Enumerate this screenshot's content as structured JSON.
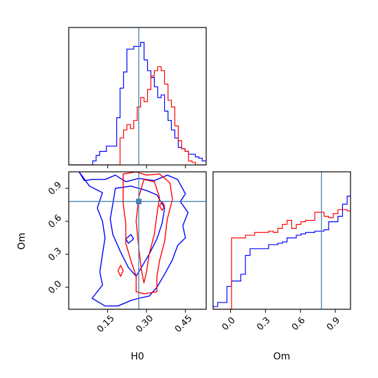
{
  "chart_data": {
    "type": "corner",
    "parameters": [
      "H0",
      "Om"
    ],
    "truth": {
      "H0": 0.27,
      "Om": 0.78
    },
    "colors": {
      "series_a": "#0000ff",
      "series_b": "#ff0000",
      "truth": "#4682b4"
    },
    "panels": [
      {
        "type": "histogram",
        "parameter": "H0",
        "xlim": [
          0.0,
          0.53
        ],
        "bin_width": 0.0132,
        "bin_start": 0.0,
        "series": [
          {
            "color": "#0000ff",
            "counts": [
              0,
              0,
              0,
              0,
              0,
              0,
              0,
              0.03,
              0.07,
              0.1,
              0.1,
              0.14,
              0.14,
              0.14,
              0.35,
              0.57,
              0.69,
              0.86,
              0.86,
              0.88,
              0.88,
              0.91,
              0.78,
              0.7,
              0.65,
              0.58,
              0.5,
              0.52,
              0.4,
              0.33,
              0.26,
              0.2,
              0.13,
              0.12,
              0.1,
              0.08,
              0.08,
              0.06,
              0.05,
              0.03
            ]
          },
          {
            "color": "#ff0000",
            "counts": [
              0,
              0,
              0,
              0,
              0,
              0,
              0,
              0,
              0,
              0,
              0,
              0,
              0,
              0,
              0,
              0.2,
              0.26,
              0.3,
              0.27,
              0.33,
              0.43,
              0.5,
              0.47,
              0.56,
              0.66,
              0.7,
              0.73,
              0.7,
              0.6,
              0.48,
              0.43,
              0.29,
              0.18,
              0.12,
              0.1,
              0.03,
              0.02,
              0,
              0,
              0
            ]
          }
        ]
      },
      {
        "type": "histogram",
        "parameter": "Om",
        "xlim": [
          -0.15,
          1.03
        ],
        "bin_width": 0.0397,
        "bin_start": -0.15,
        "series": [
          {
            "color": "#0000ff",
            "counts": [
              0.02,
              0.05,
              0.05,
              0.17,
              0.21,
              0.21,
              0.26,
              0.4,
              0.45,
              0.45,
              0.45,
              0.45,
              0.48,
              0.48,
              0.49,
              0.5,
              0.53,
              0.53,
              0.55,
              0.56,
              0.57,
              0.57,
              0.58,
              0.58,
              0.59,
              0.65,
              0.65,
              0.69,
              0.78,
              0.84,
              0.84,
              0.81,
              0.78,
              0.74,
              0.58,
              0.5,
              0.45,
              0.43
            ]
          },
          {
            "color": "#ff0000",
            "counts": [
              0,
              0,
              0,
              0,
              0.53,
              0.53,
              0.53,
              0.55,
              0.55,
              0.57,
              0.57,
              0.57,
              0.58,
              0.57,
              0.6,
              0.63,
              0.66,
              0.6,
              0.63,
              0.65,
              0.66,
              0.66,
              0.72,
              0.72,
              0.69,
              0.68,
              0.71,
              0.74,
              0.74,
              0.73,
              0.75,
              0.73,
              0.76,
              0.74,
              0.0,
              0.0,
              0.0,
              0.0
            ]
          }
        ]
      },
      {
        "type": "contour",
        "x": "H0",
        "y": "Om",
        "xlim": [
          0.0,
          0.53
        ],
        "ylim": [
          -0.2,
          1.05
        ],
        "series": [
          {
            "color": "#0000ff",
            "levels": [
              [
                [
                  0.04,
                  1.05
                ],
                [
                  0.06,
                  0.97
                ],
                [
                  0.09,
                  0.98
                ],
                [
                  0.14,
                  0.98
                ],
                [
                  0.18,
                  1.02
                ],
                [
                  0.22,
                  0.96
                ],
                [
                  0.27,
                  0.99
                ],
                [
                  0.33,
                  0.97
                ],
                [
                  0.38,
                  1.02
                ],
                [
                  0.42,
                  0.98
                ],
                [
                  0.45,
                  0.85
                ],
                [
                  0.43,
                  0.78
                ],
                [
                  0.46,
                  0.68
                ],
                [
                  0.44,
                  0.56
                ],
                [
                  0.45,
                  0.45
                ],
                [
                  0.42,
                  0.38
                ],
                [
                  0.4,
                  0.25
                ],
                [
                  0.37,
                  0.12
                ],
                [
                  0.34,
                  0.0
                ],
                [
                  0.31,
                  -0.08
                ],
                [
                  0.27,
                  -0.1
                ],
                [
                  0.24,
                  -0.12
                ],
                [
                  0.19,
                  -0.17
                ],
                [
                  0.14,
                  -0.17
                ],
                [
                  0.09,
                  -0.1
                ],
                [
                  0.13,
                  0.02
                ],
                [
                  0.12,
                  0.14
                ],
                [
                  0.13,
                  0.3
                ],
                [
                  0.14,
                  0.45
                ],
                [
                  0.13,
                  0.6
                ],
                [
                  0.11,
                  0.72
                ],
                [
                  0.13,
                  0.86
                ],
                [
                  0.08,
                  0.92
                ],
                [
                  0.04,
                  1.05
                ]
              ],
              [
                [
                  0.18,
                  0.9
                ],
                [
                  0.24,
                  0.92
                ],
                [
                  0.3,
                  0.88
                ],
                [
                  0.34,
                  0.84
                ],
                [
                  0.37,
                  0.72
                ],
                [
                  0.36,
                  0.58
                ],
                [
                  0.34,
                  0.44
                ],
                [
                  0.31,
                  0.3
                ],
                [
                  0.28,
                  0.18
                ],
                [
                  0.26,
                  0.1
                ],
                [
                  0.23,
                  0.18
                ],
                [
                  0.2,
                  0.32
                ],
                [
                  0.17,
                  0.48
                ],
                [
                  0.16,
                  0.62
                ],
                [
                  0.17,
                  0.76
                ],
                [
                  0.18,
                  0.9
                ]
              ],
              [
                [
                  0.23,
                  0.4
                ],
                [
                  0.25,
                  0.44
                ],
                [
                  0.24,
                  0.48
                ],
                [
                  0.22,
                  0.44
                ],
                [
                  0.23,
                  0.4
                ]
              ]
            ]
          },
          {
            "color": "#ff0000",
            "levels": [
              [
                [
                  0.21,
                  1.03
                ],
                [
                  0.26,
                  1.05
                ],
                [
                  0.3,
                  1.02
                ],
                [
                  0.35,
                  1.03
                ],
                [
                  0.39,
                  0.95
                ],
                [
                  0.4,
                  0.8
                ],
                [
                  0.38,
                  0.62
                ],
                [
                  0.37,
                  0.42
                ],
                [
                  0.35,
                  0.24
                ],
                [
                  0.34,
                  0.1
                ],
                [
                  0.34,
                  -0.04
                ],
                [
                  0.29,
                  -0.06
                ],
                [
                  0.26,
                  -0.04
                ],
                [
                  0.26,
                  0.1
                ],
                [
                  0.24,
                  0.24
                ],
                [
                  0.22,
                  0.4
                ],
                [
                  0.22,
                  0.58
                ],
                [
                  0.21,
                  0.76
                ],
                [
                  0.21,
                  1.03
                ]
              ],
              [
                [
                  0.29,
                  0.98
                ],
                [
                  0.33,
                  0.96
                ],
                [
                  0.35,
                  0.82
                ],
                [
                  0.34,
                  0.66
                ],
                [
                  0.33,
                  0.48
                ],
                [
                  0.31,
                  0.3
                ],
                [
                  0.3,
                  0.14
                ],
                [
                  0.29,
                  0.04
                ],
                [
                  0.28,
                  0.16
                ],
                [
                  0.27,
                  0.36
                ],
                [
                  0.26,
                  0.6
                ],
                [
                  0.27,
                  0.82
                ],
                [
                  0.29,
                  0.98
                ]
              ],
              [
                [
                  0.2,
                  0.1
                ],
                [
                  0.21,
                  0.15
                ],
                [
                  0.2,
                  0.2
                ],
                [
                  0.19,
                  0.15
                ],
                [
                  0.2,
                  0.1
                ]
              ],
              [
                [
                  0.36,
                  0.7
                ],
                [
                  0.37,
                  0.74
                ],
                [
                  0.36,
                  0.78
                ],
                [
                  0.35,
                  0.74
                ],
                [
                  0.36,
                  0.7
                ]
              ]
            ]
          }
        ]
      }
    ],
    "axes": {
      "H0": {
        "label": "H0",
        "ticks": [
          0.15,
          0.3,
          0.45
        ],
        "tick_labels": [
          "0.15",
          "0.30",
          "0.45"
        ]
      },
      "Om": {
        "label": "Om",
        "ticks": [
          0.0,
          0.3,
          0.6,
          0.9
        ],
        "tick_labels": [
          "0.0",
          "0.3",
          "0.6",
          "0.9"
        ]
      }
    }
  }
}
